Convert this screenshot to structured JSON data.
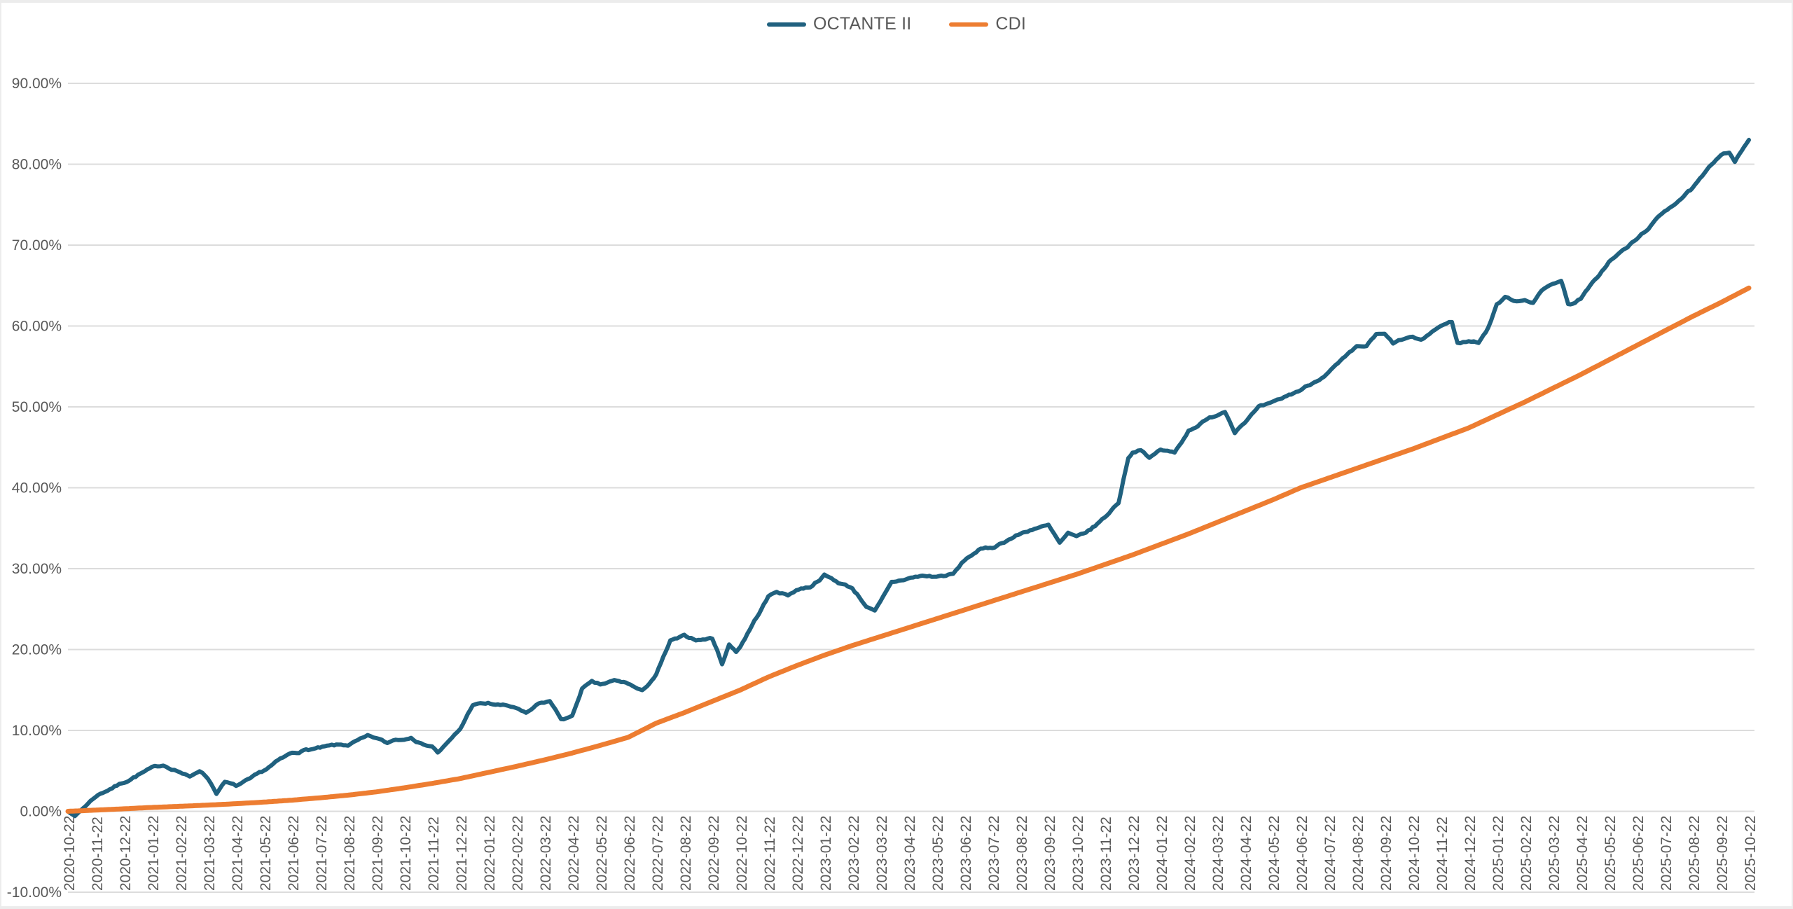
{
  "page": {
    "background": "#ffffff",
    "frame_color": "#ececec",
    "grid_color": "#dcdcdc",
    "axis_text_color": "#595959"
  },
  "chart_data": {
    "type": "line",
    "title": "",
    "legend_position": "top-center",
    "grid": true,
    "x_axis": {
      "label": "",
      "tick_interval": "monthly",
      "tick_labels": [
        "2020-10-22",
        "2020-11-22",
        "2020-12-22",
        "2021-01-22",
        "2021-02-22",
        "2021-03-22",
        "2021-04-22",
        "2021-05-22",
        "2021-06-22",
        "2021-07-22",
        "2021-08-22",
        "2021-09-22",
        "2021-10-22",
        "2021-11-22",
        "2021-12-22",
        "2022-01-22",
        "2022-02-22",
        "2022-03-22",
        "2022-04-22",
        "2022-05-22",
        "2022-06-22",
        "2022-07-22",
        "2022-08-22",
        "2022-09-22",
        "2022-10-22",
        "2022-11-22",
        "2022-12-22",
        "2023-01-22",
        "2023-02-22",
        "2023-03-22",
        "2023-04-22",
        "2023-05-22",
        "2023-06-22",
        "2023-07-22",
        "2023-08-22",
        "2023-09-22",
        "2023-10-22",
        "2023-11-22",
        "2023-12-22",
        "2024-01-22",
        "2024-02-22",
        "2024-03-22",
        "2024-04-22",
        "2024-05-22",
        "2024-06-22",
        "2024-07-22",
        "2024-08-22",
        "2024-09-22",
        "2024-10-22",
        "2024-11-22",
        "2024-12-22",
        "2025-01-22",
        "2025-02-22",
        "2025-03-22",
        "2025-04-22",
        "2025-05-22",
        "2025-06-22",
        "2025-07-22",
        "2025-08-22",
        "2025-09-22",
        "2025-10-22"
      ]
    },
    "y_axis": {
      "label": "",
      "min": -10,
      "max": 90,
      "tick_step": 10,
      "tick_labels": [
        "90.00%",
        "80.00%",
        "70.00%",
        "60.00%",
        "50.00%",
        "40.00%",
        "30.00%",
        "20.00%",
        "10.00%",
        "0.00%",
        "-10.00%"
      ]
    },
    "series": [
      {
        "name": "OCTANTE II",
        "color": "#20617f",
        "stroke_width": 6,
        "jitter": 0.28,
        "points": [
          [
            0,
            0
          ],
          [
            0.25,
            -0.6
          ],
          [
            0.6,
            0.6
          ],
          [
            1,
            1.9
          ],
          [
            1.5,
            2.8
          ],
          [
            2,
            3.6
          ],
          [
            2.5,
            4.5
          ],
          [
            3,
            5.3
          ],
          [
            3.4,
            5.7
          ],
          [
            3.8,
            5.2
          ],
          [
            4,
            4.9
          ],
          [
            4.35,
            4.2
          ],
          [
            4.7,
            5.1
          ],
          [
            5,
            4.1
          ],
          [
            5.3,
            2.3
          ],
          [
            5.6,
            3.6
          ],
          [
            6,
            3.1
          ],
          [
            6.5,
            3.9
          ],
          [
            7,
            5.0
          ],
          [
            7.5,
            6.2
          ],
          [
            8,
            7.2
          ],
          [
            8.5,
            7.6
          ],
          [
            9,
            7.8
          ],
          [
            9.5,
            8.1
          ],
          [
            10,
            8.2
          ],
          [
            10.7,
            9.2
          ],
          [
            11,
            9.0
          ],
          [
            11.4,
            8.4
          ],
          [
            11.7,
            8.9
          ],
          [
            12,
            8.9
          ],
          [
            12.25,
            9.3
          ],
          [
            12.6,
            8.4
          ],
          [
            13,
            8.1
          ],
          [
            13.2,
            7.3
          ],
          [
            13.6,
            8.6
          ],
          [
            14,
            10.1
          ],
          [
            14.45,
            13.2
          ],
          [
            15,
            13.3
          ],
          [
            15.7,
            13.0
          ],
          [
            16,
            12.8
          ],
          [
            16.35,
            12.0
          ],
          [
            16.8,
            13.2
          ],
          [
            17.2,
            13.6
          ],
          [
            17.6,
            11.4
          ],
          [
            18,
            11.7
          ],
          [
            18.35,
            15.2
          ],
          [
            18.7,
            15.9
          ],
          [
            19,
            15.6
          ],
          [
            19.5,
            16.1
          ],
          [
            20,
            15.8
          ],
          [
            20.5,
            14.8
          ],
          [
            21,
            16.9
          ],
          [
            21.5,
            21.0
          ],
          [
            22,
            21.6
          ],
          [
            22.5,
            21.2
          ],
          [
            23,
            21.4
          ],
          [
            23.35,
            18.3
          ],
          [
            23.6,
            20.6
          ],
          [
            23.85,
            19.8
          ],
          [
            24,
            20.4
          ],
          [
            24.5,
            23.5
          ],
          [
            25,
            26.5
          ],
          [
            25.3,
            27.2
          ],
          [
            25.7,
            26.7
          ],
          [
            26,
            27.4
          ],
          [
            26.5,
            27.8
          ],
          [
            27,
            29.2
          ],
          [
            27.5,
            28.3
          ],
          [
            28,
            27.6
          ],
          [
            28.5,
            25.4
          ],
          [
            28.8,
            24.7
          ],
          [
            29,
            25.8
          ],
          [
            29.4,
            28.2
          ],
          [
            30,
            28.8
          ],
          [
            30.5,
            29.1
          ],
          [
            31,
            29.0
          ],
          [
            31.6,
            29.3
          ],
          [
            32,
            31.0
          ],
          [
            32.5,
            32.3
          ],
          [
            33,
            32.6
          ],
          [
            33.5,
            33.5
          ],
          [
            34,
            34.3
          ],
          [
            34.5,
            35.0
          ],
          [
            35,
            35.3
          ],
          [
            35.4,
            33.1
          ],
          [
            35.7,
            34.3
          ],
          [
            36,
            33.8
          ],
          [
            36.5,
            34.8
          ],
          [
            37,
            36.3
          ],
          [
            37.5,
            38.2
          ],
          [
            37.85,
            43.8
          ],
          [
            38,
            44.4
          ],
          [
            38.3,
            44.8
          ],
          [
            38.6,
            43.6
          ],
          [
            39,
            44.7
          ],
          [
            39.5,
            44.3
          ],
          [
            40,
            47.1
          ],
          [
            40.5,
            48.1
          ],
          [
            41,
            49.0
          ],
          [
            41.3,
            49.5
          ],
          [
            41.65,
            47.0
          ],
          [
            42,
            48.2
          ],
          [
            42.5,
            49.9
          ],
          [
            43,
            50.4
          ],
          [
            43.5,
            51.3
          ],
          [
            44,
            52.1
          ],
          [
            44.5,
            53.1
          ],
          [
            45,
            54.3
          ],
          [
            45.5,
            55.8
          ],
          [
            46,
            57.3
          ],
          [
            46.35,
            57.5
          ],
          [
            46.7,
            58.9
          ],
          [
            47,
            58.9
          ],
          [
            47.3,
            57.8
          ],
          [
            47.7,
            58.4
          ],
          [
            48,
            58.6
          ],
          [
            48.3,
            58.1
          ],
          [
            48.7,
            59.3
          ],
          [
            49,
            60.0
          ],
          [
            49.4,
            60.5
          ],
          [
            49.6,
            57.9
          ],
          [
            50,
            58.1
          ],
          [
            50.35,
            58.0
          ],
          [
            50.7,
            59.8
          ],
          [
            51,
            62.7
          ],
          [
            51.3,
            63.5
          ],
          [
            51.7,
            63.1
          ],
          [
            52,
            63.3
          ],
          [
            52.3,
            63.0
          ],
          [
            52.6,
            64.3
          ],
          [
            53,
            65.3
          ],
          [
            53.3,
            65.6
          ],
          [
            53.55,
            62.8
          ],
          [
            53.8,
            62.9
          ],
          [
            54,
            63.4
          ],
          [
            54.5,
            65.6
          ],
          [
            55,
            67.9
          ],
          [
            55.5,
            69.3
          ],
          [
            56,
            70.7
          ],
          [
            56.5,
            72.4
          ],
          [
            57,
            74.2
          ],
          [
            57.5,
            75.6
          ],
          [
            58,
            77.0
          ],
          [
            58.5,
            79.1
          ],
          [
            59,
            81.3
          ],
          [
            59.3,
            81.6
          ],
          [
            59.5,
            80.4
          ],
          [
            60,
            83.0
          ]
        ]
      },
      {
        "name": "CDI",
        "color": "#ed7d31",
        "stroke_width": 7,
        "jitter": 0,
        "monthly_values": [
          0.0,
          0.15,
          0.31,
          0.48,
          0.62,
          0.77,
          0.94,
          1.14,
          1.38,
          1.67,
          2.0,
          2.4,
          2.9,
          3.45,
          4.05,
          4.8,
          5.55,
          6.35,
          7.2,
          8.15,
          9.15,
          10.9,
          12.2,
          13.6,
          15.0,
          16.6,
          18.0,
          19.3,
          20.5,
          21.6,
          22.7,
          23.8,
          24.9,
          26.0,
          27.1,
          28.2,
          29.3,
          30.5,
          31.7,
          33.0,
          34.3,
          35.7,
          37.1,
          38.5,
          40.0,
          41.2,
          42.4,
          43.6,
          44.8,
          46.1,
          47.4,
          49.0,
          50.6,
          52.3,
          54.0,
          55.8,
          57.6,
          59.4,
          61.2,
          62.9,
          64.7
        ]
      }
    ]
  }
}
